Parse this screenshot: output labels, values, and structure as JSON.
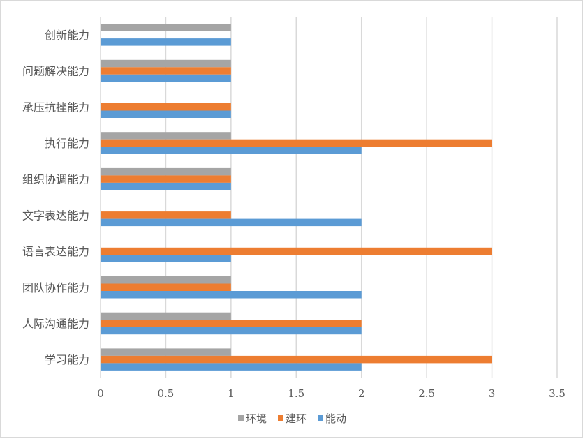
{
  "chart_data": {
    "type": "bar",
    "orientation": "horizontal",
    "title": "",
    "xlabel": "",
    "ylabel": "",
    "categories": [
      "创新能力",
      "问题解决能力",
      "承压抗挫能力",
      "执行能力",
      "组织协调能力",
      "文字表达能力",
      "语言表达能力",
      "团队协作能力",
      "人际沟通能力",
      "学习能力"
    ],
    "series": [
      {
        "name": "环境",
        "color": "#a5a5a5",
        "values": [
          1,
          1,
          0,
          1,
          1,
          0,
          0,
          1,
          1,
          1
        ]
      },
      {
        "name": "建环",
        "color": "#ed7d31",
        "values": [
          0,
          1,
          1,
          3,
          1,
          1,
          3,
          1,
          2,
          3
        ]
      },
      {
        "name": "能动",
        "color": "#5b9bd5",
        "values": [
          1,
          1,
          1,
          2,
          1,
          2,
          1,
          2,
          2,
          2
        ]
      }
    ],
    "xlim": [
      0,
      3.5
    ],
    "x_ticks": [
      "0",
      "0.5",
      "1",
      "1.5",
      "2",
      "2.5",
      "3",
      "3.5"
    ],
    "grid": true,
    "legend_position": "bottom"
  }
}
